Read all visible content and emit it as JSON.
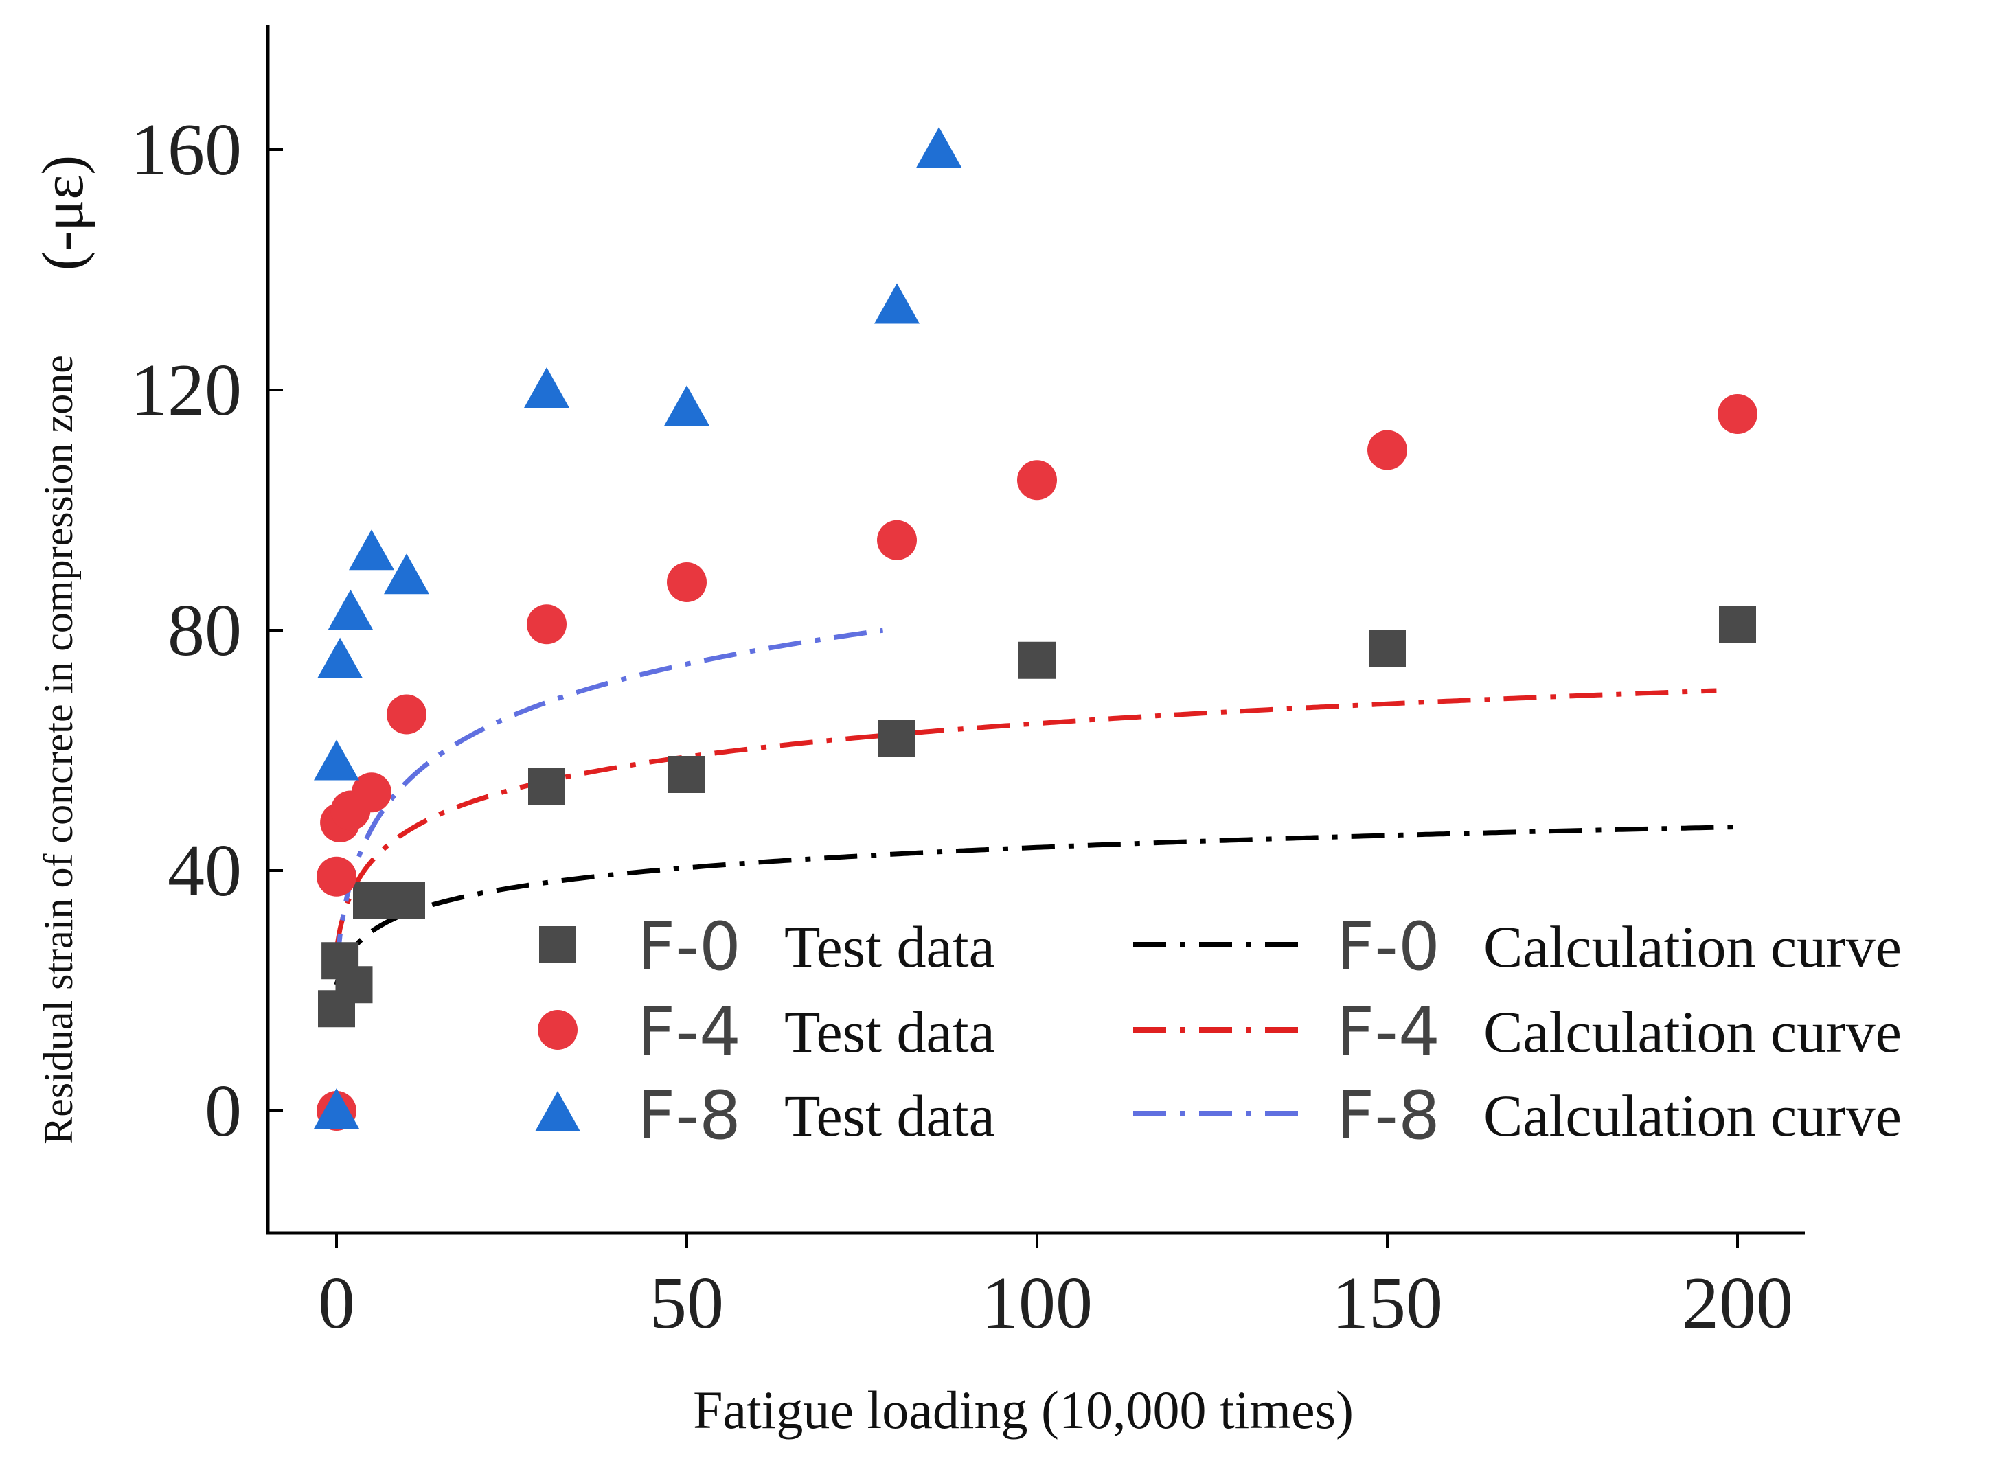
{
  "chart_data": {
    "type": "scatter",
    "title": "",
    "xlabel": "Fatigue loading (10,000 times)",
    "ylabel": "Residual strain of concrete in compression zone",
    "ylabel_unit": "(-με)",
    "xlim": [
      -10,
      210
    ],
    "ylim": [
      -20,
      180
    ],
    "xticks": [
      0,
      50,
      100,
      150,
      200
    ],
    "yticks": [
      0,
      40,
      80,
      120,
      160
    ],
    "xtick_labels": [
      "0",
      "50",
      "100",
      "150",
      "200"
    ],
    "ytick_labels": [
      "0",
      "40",
      "80",
      "120",
      "160"
    ],
    "grid": false,
    "legend_position": "bottom-right",
    "series": [
      {
        "name": "F-0",
        "test_label": "Test data",
        "curve_label": "Calculation curve",
        "color": "#4a4a4a",
        "curve_color": "#000000",
        "marker": "square",
        "points": [
          [
            0,
            17
          ],
          [
            0.5,
            25
          ],
          [
            2.5,
            21
          ],
          [
            5,
            35
          ],
          [
            10,
            35
          ],
          [
            30,
            54
          ],
          [
            50,
            56
          ],
          [
            80,
            62
          ],
          [
            100,
            75
          ],
          [
            150,
            77
          ],
          [
            200,
            81
          ]
        ],
        "curve": {
          "a": 21,
          "b": 11.4,
          "x_max": 200
        }
      },
      {
        "name": "F-4",
        "test_label": "Test data",
        "curve_label": "Calculation curve",
        "color": "#e8373f",
        "curve_color": "#e02020",
        "marker": "circle",
        "points": [
          [
            0,
            0
          ],
          [
            0,
            39
          ],
          [
            0.5,
            48
          ],
          [
            2,
            50
          ],
          [
            5,
            53
          ],
          [
            10,
            66
          ],
          [
            30,
            81
          ],
          [
            50,
            88
          ],
          [
            80,
            95
          ],
          [
            100,
            105
          ],
          [
            150,
            110
          ],
          [
            200,
            116
          ]
        ],
        "curve": {
          "a": 27,
          "b": 18.7,
          "x_max": 197
        }
      },
      {
        "name": "F-8",
        "test_label": "Test data",
        "curve_label": "Calculation curve",
        "color": "#1f6fd4",
        "curve_color": "#6070e0",
        "marker": "triangle",
        "points": [
          [
            0,
            0
          ],
          [
            0,
            58
          ],
          [
            0.5,
            75
          ],
          [
            2,
            83
          ],
          [
            5,
            93
          ],
          [
            10,
            89
          ],
          [
            30,
            120
          ],
          [
            50,
            117
          ],
          [
            80,
            134
          ],
          [
            86,
            160
          ]
        ],
        "curve": {
          "a": 24,
          "b": 29.5,
          "x_max": 78
        }
      }
    ]
  }
}
